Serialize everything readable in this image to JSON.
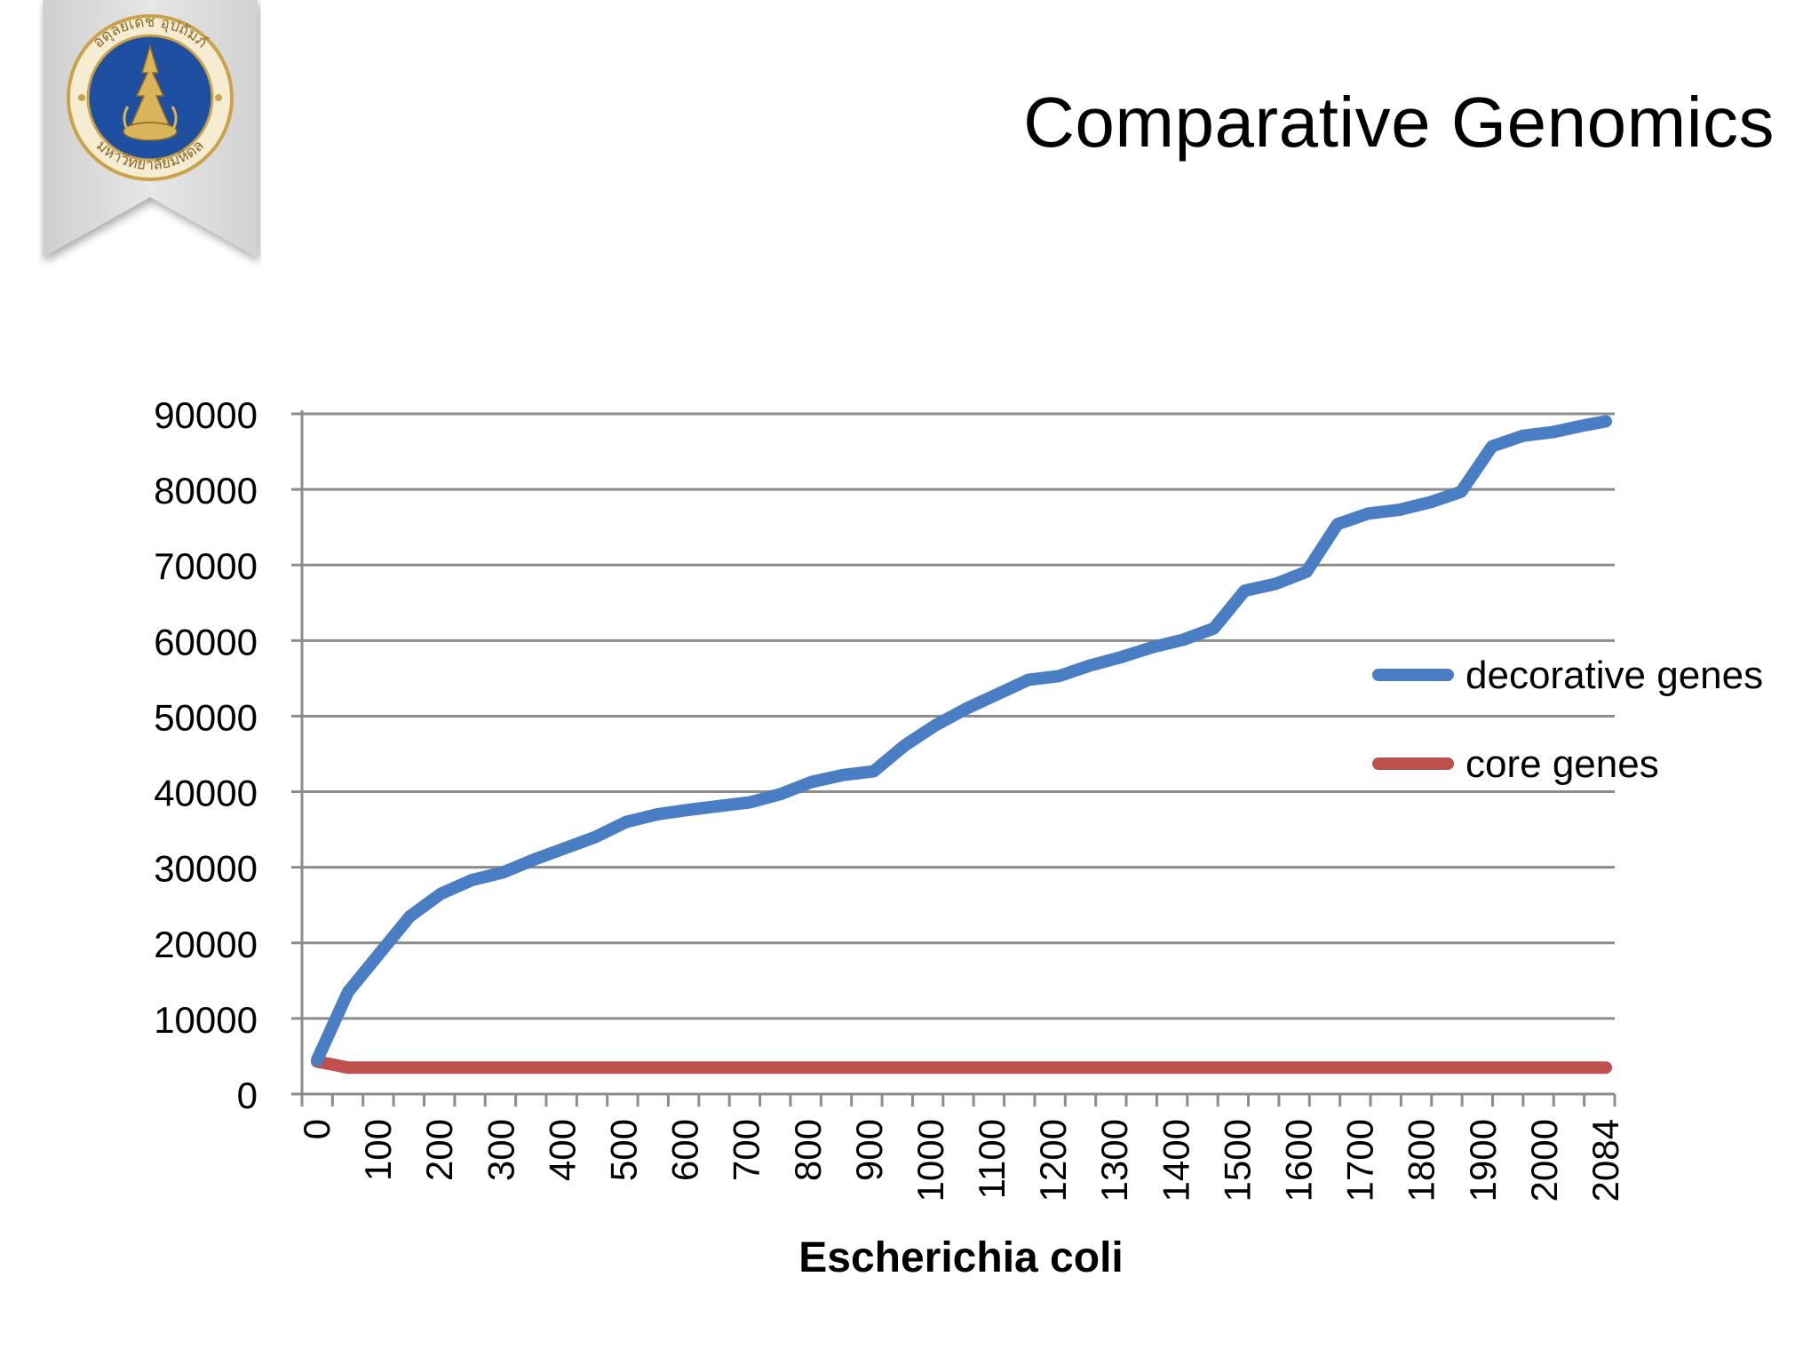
{
  "slide": {
    "title": "Comparative Genomics"
  },
  "logo": {
    "icon": "university-seal-icon",
    "seal_text_top": "อดุลยเดช อุปถัมภ์",
    "seal_text_bottom": "มหาวิทยาลัยมหิดล",
    "colors": {
      "banner": "#dcdcdc",
      "seal_ring": "#c9a24a",
      "seal_center": "#1f4fa0"
    }
  },
  "chart_data": {
    "type": "line",
    "xlabel": "Escherichia coli",
    "ylabel": "",
    "ylim": [
      0,
      90000
    ],
    "yticks": [
      0,
      10000,
      20000,
      30000,
      40000,
      50000,
      60000,
      70000,
      80000,
      90000
    ],
    "ytick_labels": [
      "0",
      "10000",
      "20000",
      "30000",
      "40000",
      "50000",
      "60000",
      "70000",
      "80000",
      "90000"
    ],
    "xtick_labels": [
      "0",
      "100",
      "200",
      "300",
      "400",
      "500",
      "600",
      "700",
      "800",
      "900",
      "1000",
      "1100",
      "1200",
      "1300",
      "1400",
      "1500",
      "1600",
      "1700",
      "1800",
      "1900",
      "2000",
      "2084"
    ],
    "xlim": [
      0,
      2084
    ],
    "grid": true,
    "legend_position": "right",
    "x": [
      0,
      50,
      100,
      150,
      200,
      250,
      300,
      350,
      400,
      450,
      500,
      550,
      600,
      650,
      700,
      750,
      800,
      850,
      900,
      950,
      1000,
      1050,
      1100,
      1150,
      1200,
      1250,
      1300,
      1350,
      1400,
      1450,
      1500,
      1550,
      1600,
      1650,
      1700,
      1750,
      1800,
      1850,
      1900,
      1950,
      2000,
      2050,
      2084
    ],
    "series": [
      {
        "name": "decorative genes",
        "color": "#4a7ec4",
        "values": [
          4500,
          13500,
          18500,
          23500,
          26500,
          28300,
          29300,
          31000,
          32500,
          34000,
          36000,
          37000,
          37600,
          38100,
          38600,
          39700,
          41300,
          42200,
          42700,
          46100,
          48800,
          51000,
          52900,
          54800,
          55300,
          56700,
          57800,
          59100,
          60100,
          61600,
          66600,
          67500,
          69100,
          75400,
          76800,
          77300,
          78300,
          79700,
          85700,
          87100,
          87600,
          88500,
          89000
        ]
      },
      {
        "name": "core genes",
        "color": "#c0504d",
        "values": [
          4300,
          3500,
          3500,
          3500,
          3500,
          3500,
          3500,
          3500,
          3500,
          3500,
          3500,
          3500,
          3500,
          3500,
          3500,
          3500,
          3500,
          3500,
          3500,
          3500,
          3500,
          3500,
          3500,
          3500,
          3500,
          3500,
          3500,
          3500,
          3500,
          3500,
          3500,
          3500,
          3500,
          3500,
          3500,
          3500,
          3500,
          3500,
          3500,
          3500,
          3500,
          3500,
          3500
        ]
      }
    ]
  }
}
